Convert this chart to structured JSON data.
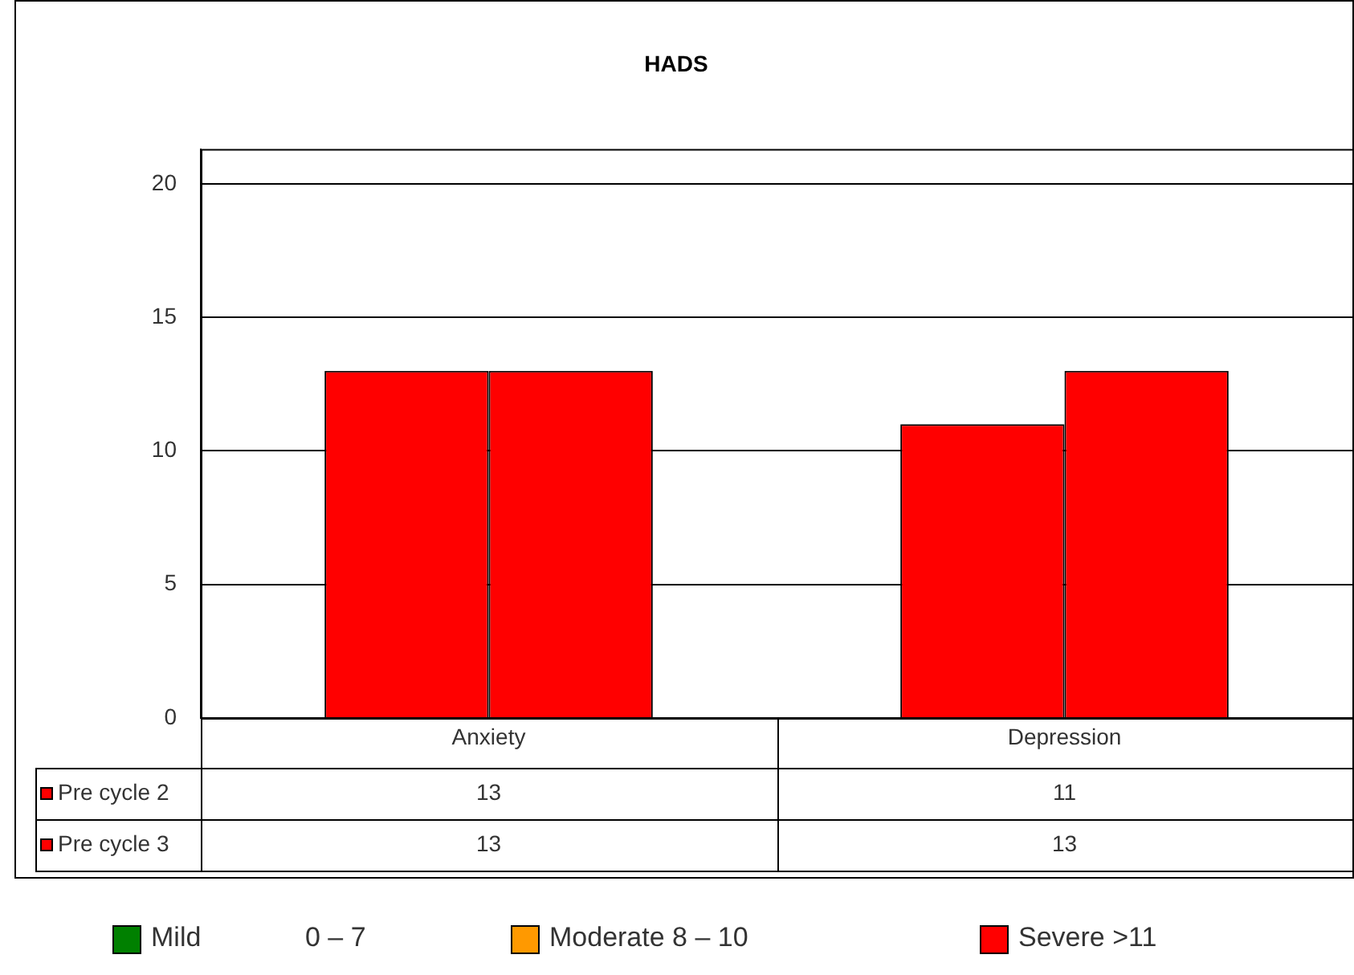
{
  "chart_data": {
    "type": "bar",
    "title": "HADS",
    "categories": [
      "Anxiety",
      "Depression"
    ],
    "series": [
      {
        "name": "Pre cycle 2",
        "color": "#ff0000",
        "values": [
          13,
          11
        ]
      },
      {
        "name": "Pre cycle 3",
        "color": "#ff0000",
        "values": [
          13,
          13
        ]
      }
    ],
    "ylim": [
      0,
      21.3
    ],
    "yticks": [
      0,
      5,
      10,
      15,
      20
    ],
    "grid": "y",
    "legend": "bottom left",
    "data_labels": true,
    "annotations": [
      "Mild",
      "0 – 7",
      "Moderate 8 – 10",
      "Severe >11"
    ]
  }
}
